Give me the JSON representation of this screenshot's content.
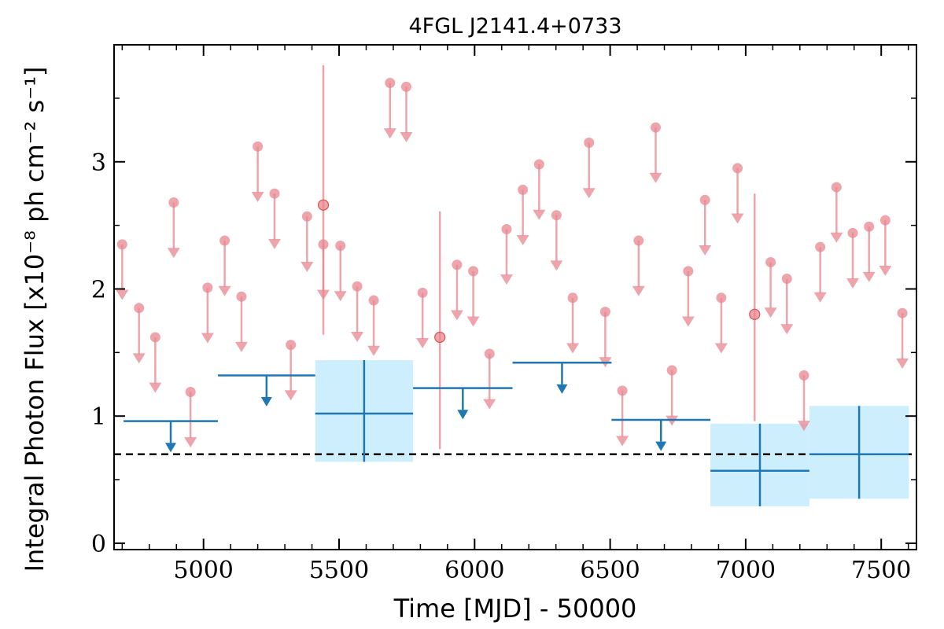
{
  "chart_data": {
    "type": "scatter",
    "title": "4FGL J2141.4+0733",
    "xlabel": "Time [MJD] - 50000",
    "ylabel": "Integral Photon Flux [x10⁻⁸ ph cm⁻² s⁻¹]",
    "xlim": [
      4670,
      7630
    ],
    "ylim": [
      -0.05,
      3.92
    ],
    "xticks": [
      5000,
      5500,
      6000,
      6500,
      7000,
      7500
    ],
    "xtick_labels": [
      "5000",
      "5500",
      "6000",
      "6500",
      "7000",
      "7500"
    ],
    "yticks": [
      0,
      1,
      2,
      3
    ],
    "ytick_labels": [
      "0",
      "1",
      "2",
      "3"
    ],
    "grid": false,
    "reference_line": {
      "y": 0.7,
      "style": "dashed",
      "color": "#000000"
    },
    "colors": {
      "short_bin": "#e8858f",
      "long_bin": "#1f77b4",
      "long_bin_band": "#cdeefc"
    },
    "series": [
      {
        "kind": "upper_limits",
        "color": "#e8858f",
        "points": [
          {
            "x": 4700,
            "y": 2.35
          },
          {
            "x": 4762,
            "y": 1.85
          },
          {
            "x": 4822,
            "y": 1.62
          },
          {
            "x": 4890,
            "y": 2.68
          },
          {
            "x": 4952,
            "y": 1.19
          },
          {
            "x": 5015,
            "y": 2.01
          },
          {
            "x": 5078,
            "y": 2.38
          },
          {
            "x": 5140,
            "y": 1.94
          },
          {
            "x": 5200,
            "y": 3.12
          },
          {
            "x": 5262,
            "y": 2.75
          },
          {
            "x": 5322,
            "y": 1.56
          },
          {
            "x": 5382,
            "y": 2.57
          },
          {
            "x": 5442,
            "y": 2.35
          },
          {
            "x": 5505,
            "y": 2.34
          },
          {
            "x": 5567,
            "y": 2.02
          },
          {
            "x": 5628,
            "y": 1.91
          },
          {
            "x": 5688,
            "y": 3.62
          },
          {
            "x": 5748,
            "y": 3.59
          },
          {
            "x": 5808,
            "y": 1.97
          },
          {
            "x": 5935,
            "y": 2.19
          },
          {
            "x": 5995,
            "y": 2.14
          },
          {
            "x": 6055,
            "y": 1.49
          },
          {
            "x": 6118,
            "y": 2.47
          },
          {
            "x": 6178,
            "y": 2.78
          },
          {
            "x": 6238,
            "y": 2.98
          },
          {
            "x": 6302,
            "y": 2.58
          },
          {
            "x": 6362,
            "y": 1.93
          },
          {
            "x": 6422,
            "y": 3.15
          },
          {
            "x": 6482,
            "y": 1.82
          },
          {
            "x": 6545,
            "y": 1.2
          },
          {
            "x": 6605,
            "y": 2.38
          },
          {
            "x": 6668,
            "y": 3.27
          },
          {
            "x": 6728,
            "y": 1.36
          },
          {
            "x": 6788,
            "y": 2.14
          },
          {
            "x": 6850,
            "y": 2.7
          },
          {
            "x": 6910,
            "y": 1.93
          },
          {
            "x": 6970,
            "y": 2.95
          },
          {
            "x": 7092,
            "y": 2.21
          },
          {
            "x": 7152,
            "y": 2.08
          },
          {
            "x": 7215,
            "y": 1.32
          },
          {
            "x": 7275,
            "y": 2.33
          },
          {
            "x": 7335,
            "y": 2.8
          },
          {
            "x": 7395,
            "y": 2.44
          },
          {
            "x": 7455,
            "y": 2.49
          },
          {
            "x": 7515,
            "y": 2.54
          },
          {
            "x": 7578,
            "y": 1.81
          }
        ]
      },
      {
        "kind": "detections",
        "color": "#e8858f",
        "points": [
          {
            "x": 5442,
            "y": 2.66,
            "ylow": 1.64,
            "yhigh": 3.76
          },
          {
            "x": 5872,
            "y": 1.62,
            "ylow": 0.74,
            "yhigh": 2.61
          },
          {
            "x": 7033,
            "y": 1.8,
            "ylow": 0.96,
            "yhigh": 2.75
          }
        ]
      },
      {
        "kind": "long_upper_limits",
        "color": "#1f77b4",
        "points": [
          {
            "xstart": 4705,
            "xend": 5053,
            "y": 0.96
          },
          {
            "xstart": 5053,
            "xend": 5412,
            "y": 1.32
          },
          {
            "xstart": 5773,
            "xend": 6140,
            "y": 1.22
          },
          {
            "xstart": 6140,
            "xend": 6505,
            "y": 1.42
          },
          {
            "xstart": 6505,
            "xend": 6870,
            "y": 0.97
          }
        ]
      },
      {
        "kind": "long_detections",
        "color": "#1f77b4",
        "band_color": "#cdeefc",
        "points": [
          {
            "xstart": 5412,
            "xend": 5773,
            "y": 1.02,
            "ylow": 0.64,
            "yhigh": 1.44
          },
          {
            "xstart": 6870,
            "xend": 7235,
            "y": 0.57,
            "ylow": 0.29,
            "yhigh": 0.94
          },
          {
            "xstart": 7235,
            "xend": 7602,
            "y": 0.7,
            "ylow": 0.35,
            "yhigh": 1.08
          }
        ]
      }
    ]
  }
}
